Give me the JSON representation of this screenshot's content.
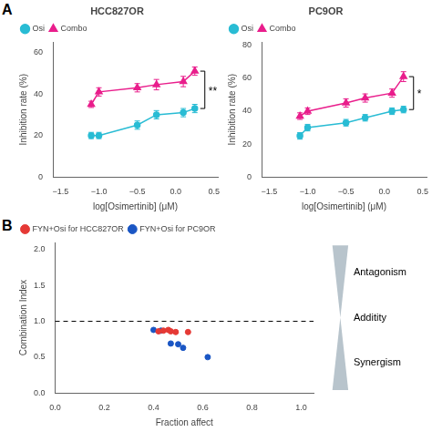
{
  "chart_data": [
    {
      "type": "line",
      "panel_label": "A",
      "title": "HCC827OR",
      "x_label": "log[Osimertinib] (μM)",
      "y_label": "Inhibition rate (%)",
      "x": [
        -1.1,
        -1.0,
        -0.5,
        -0.25,
        0.1,
        0.25
      ],
      "series": [
        {
          "name": "Osi",
          "color": "#29bcd4",
          "marker": "circle",
          "values": [
            20,
            20,
            25,
            30,
            31,
            33
          ],
          "errors": [
            1.5,
            1.5,
            2.0,
            2.0,
            2.0,
            2.0
          ]
        },
        {
          "name": "Combo",
          "color": "#e91e8c",
          "marker": "triangle",
          "values": [
            35,
            41,
            43,
            44.5,
            46,
            51
          ],
          "errors": [
            1.5,
            2.0,
            2.0,
            2.5,
            2.5,
            2.0
          ]
        }
      ],
      "xlim": [
        -1.6,
        0.55
      ],
      "xticks": [
        {
          "value": -1.5,
          "label": "−1.5"
        },
        {
          "value": -1.0,
          "label": "−1.0"
        },
        {
          "value": -0.5,
          "label": "−0.5"
        },
        {
          "value": 0.0,
          "label": "0.0"
        },
        0.5
      ],
      "ylim": [
        0,
        65
      ],
      "yticks": [
        0,
        20,
        40,
        60
      ],
      "grid": false,
      "legend": "upper left",
      "annotations": [
        {
          "text": "**",
          "bracket": [
            "Osi",
            "Combo"
          ]
        }
      ]
    },
    {
      "type": "line",
      "title": "PC9OR",
      "x_label": "log[Osimertinib] (μM)",
      "y_label": "Inhibition rate (%)",
      "x": [
        -1.1,
        -1.0,
        -0.5,
        -0.25,
        0.1,
        0.25
      ],
      "series": [
        {
          "name": "Osi",
          "color": "#29bcd4",
          "marker": "circle",
          "values": [
            25,
            30,
            33,
            36,
            40,
            41
          ],
          "errors": [
            2.0,
            2.0,
            2.0,
            2.0,
            2.0,
            2.0
          ]
        },
        {
          "name": "Combo",
          "color": "#e91e8c",
          "marker": "triangle",
          "values": [
            37,
            40,
            45,
            48,
            51,
            61
          ],
          "errors": [
            2.0,
            2.0,
            2.5,
            2.5,
            2.5,
            3.0
          ]
        }
      ],
      "xlim": [
        -1.6,
        0.55
      ],
      "xticks": [
        {
          "value": -1.5,
          "label": "−1.5"
        },
        {
          "value": -1.0,
          "label": "−1.0"
        },
        {
          "value": -0.5,
          "label": "−0.5"
        },
        {
          "value": 0.0,
          "label": "0.0"
        },
        0.5
      ],
      "ylim": [
        0,
        82
      ],
      "yticks": [
        0,
        20,
        40,
        60,
        80
      ],
      "grid": false,
      "legend": "upper left",
      "annotations": [
        {
          "text": "*",
          "bracket": [
            "Osi",
            "Combo"
          ]
        }
      ]
    },
    {
      "type": "scatter",
      "panel_label": "B",
      "x_label": "Fraction affect",
      "y_label": "Combination Index",
      "series": [
        {
          "name": "FYN+Osi for HCC827OR",
          "color": "#e53935",
          "marker": "circle",
          "x": [
            0.42,
            0.44,
            0.46,
            0.47,
            0.49,
            0.54
          ],
          "values": [
            0.86,
            0.87,
            0.88,
            0.86,
            0.85,
            0.85
          ]
        },
        {
          "name": "FYN+Osi for PC9OR",
          "color": "#1a56c4",
          "marker": "circle",
          "x": [
            0.4,
            0.43,
            0.47,
            0.5,
            0.52,
            0.62
          ],
          "values": [
            0.88,
            0.87,
            0.69,
            0.68,
            0.63,
            0.5
          ]
        }
      ],
      "xlim": [
        0.0,
        1.05
      ],
      "xticks": [
        {
          "value": 0.0,
          "label": "0.0"
        },
        0.2,
        0.4,
        0.6,
        0.8,
        {
          "value": 1.0,
          "label": "1.0"
        }
      ],
      "ylim": [
        0.0,
        2.1
      ],
      "yticks": [
        {
          "value": 0.0,
          "label": "0.0"
        },
        0.5,
        {
          "value": 1.0,
          "label": "1.0"
        },
        1.5,
        {
          "value": 2.0,
          "label": "2.0"
        }
      ],
      "grid": false,
      "legend": "upper left",
      "annotations": [
        {
          "hline": 1.0,
          "line_style": "dashed"
        },
        {
          "shape": "bowtie",
          "color": "#b8c4cc",
          "labels": [
            "Antagonism",
            "Additity",
            "Synergism"
          ]
        }
      ]
    }
  ]
}
